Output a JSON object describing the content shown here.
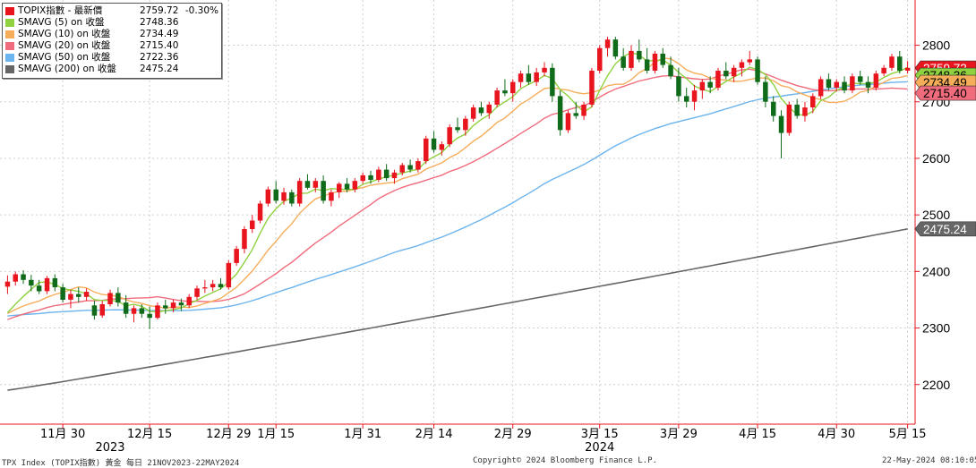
{
  "legend": [
    {
      "name": "TOPIX指數 - 最新價",
      "value": "2759.72",
      "change": "-0.30%",
      "color": "#e8141e"
    },
    {
      "name": "SMAVG (5)  on 收盤",
      "value": "2748.36",
      "change": "",
      "color": "#8fd13f"
    },
    {
      "name": "SMAVG (10)  on 收盤",
      "value": "2734.49",
      "change": "",
      "color": "#f5ad5a"
    },
    {
      "name": "SMAVG (20)  on 收盤",
      "value": "2715.40",
      "change": "",
      "color": "#f06b7c"
    },
    {
      "name": "SMAVG (50)  on 收盤",
      "value": "2722.36",
      "change": "",
      "color": "#6cb4ee"
    },
    {
      "name": "SMAVG (200)  on 收盤",
      "value": "2475.24",
      "change": "",
      "color": "#666666"
    }
  ],
  "footer": {
    "left": "TPX Index (TOPIX指數) 黃金  每日 21NOV2023-22MAY2024",
    "center": "Copyright© 2024 Bloomberg Finance L.P.",
    "right": "22-May-2024 08:10:05"
  },
  "chart_data": {
    "type": "candlestick",
    "ylim": [
      2130,
      2880
    ],
    "y_ticks": [
      2200,
      2300,
      2400,
      2500,
      2600,
      2700,
      2800
    ],
    "x_ticks": [
      {
        "label": "11月 30",
        "i": 7
      },
      {
        "label": "12月 15",
        "i": 18
      },
      {
        "label": "12月 29",
        "i": 28
      },
      {
        "label": "1月 15",
        "i": 34
      },
      {
        "label": "1月 31",
        "i": 45
      },
      {
        "label": "2月 14",
        "i": 54
      },
      {
        "label": "2月 29",
        "i": 64
      },
      {
        "label": "3月 15",
        "i": 75
      },
      {
        "label": "3月 29",
        "i": 85
      },
      {
        "label": "4月 15",
        "i": 95
      },
      {
        "label": "4月 30",
        "i": 105
      },
      {
        "label": "5月 15",
        "i": 114
      }
    ],
    "year_labels": [
      {
        "label": "2023",
        "i": 13
      },
      {
        "label": "2024",
        "i": 75
      }
    ],
    "value_tags": [
      {
        "value": "2759.72",
        "y": 2759.72,
        "color": "#e8141e",
        "text_color": "#ffffff"
      },
      {
        "value": "2748.36",
        "y": 2748.36,
        "color": "#8fd13f",
        "text_color": "#000000"
      },
      {
        "value": "2734.49",
        "y": 2734.49,
        "color": "#f5ad5a",
        "text_color": "#000000"
      },
      {
        "value": "2715.40",
        "y": 2715.4,
        "color": "#f06b7c",
        "text_color": "#000000"
      },
      {
        "value": "2475.24",
        "y": 2475.24,
        "color": "#666666",
        "text_color": "#ffffff"
      }
    ],
    "ohlc": [
      [
        2373,
        2393,
        2360,
        2382
      ],
      [
        2382,
        2400,
        2375,
        2395
      ],
      [
        2395,
        2402,
        2378,
        2385
      ],
      [
        2385,
        2394,
        2365,
        2375
      ],
      [
        2375,
        2385,
        2360,
        2365
      ],
      [
        2365,
        2392,
        2360,
        2388
      ],
      [
        2388,
        2395,
        2365,
        2372
      ],
      [
        2372,
        2378,
        2345,
        2350
      ],
      [
        2350,
        2368,
        2335,
        2360
      ],
      [
        2360,
        2372,
        2345,
        2355
      ],
      [
        2355,
        2370,
        2348,
        2364
      ],
      [
        2340,
        2348,
        2315,
        2322
      ],
      [
        2322,
        2348,
        2318,
        2342
      ],
      [
        2342,
        2368,
        2338,
        2362
      ],
      [
        2362,
        2372,
        2338,
        2345
      ],
      [
        2345,
        2358,
        2318,
        2325
      ],
      [
        2325,
        2340,
        2310,
        2335
      ],
      [
        2335,
        2342,
        2318,
        2325
      ],
      [
        2325,
        2338,
        2298,
        2318
      ],
      [
        2318,
        2345,
        2315,
        2340
      ],
      [
        2340,
        2350,
        2325,
        2335
      ],
      [
        2335,
        2350,
        2328,
        2345
      ],
      [
        2345,
        2352,
        2330,
        2340
      ],
      [
        2340,
        2360,
        2335,
        2355
      ],
      [
        2355,
        2375,
        2350,
        2370
      ],
      [
        2370,
        2385,
        2362,
        2372
      ],
      [
        2372,
        2385,
        2365,
        2378
      ],
      [
        2378,
        2388,
        2368,
        2372
      ],
      [
        2372,
        2420,
        2368,
        2415
      ],
      [
        2415,
        2445,
        2410,
        2440
      ],
      [
        2440,
        2480,
        2432,
        2475
      ],
      [
        2475,
        2500,
        2468,
        2490
      ],
      [
        2490,
        2525,
        2485,
        2520
      ],
      [
        2520,
        2550,
        2515,
        2545
      ],
      [
        2545,
        2560,
        2520,
        2525
      ],
      [
        2525,
        2548,
        2518,
        2540
      ],
      [
        2540,
        2545,
        2515,
        2520
      ],
      [
        2520,
        2565,
        2515,
        2560
      ],
      [
        2560,
        2572,
        2545,
        2548
      ],
      [
        2548,
        2565,
        2540,
        2560
      ],
      [
        2560,
        2570,
        2520,
        2525
      ],
      [
        2525,
        2545,
        2515,
        2540
      ],
      [
        2540,
        2558,
        2530,
        2555
      ],
      [
        2555,
        2565,
        2540,
        2545
      ],
      [
        2545,
        2565,
        2540,
        2560
      ],
      [
        2560,
        2575,
        2555,
        2570
      ],
      [
        2570,
        2578,
        2555,
        2562
      ],
      [
        2562,
        2585,
        2558,
        2580
      ],
      [
        2580,
        2590,
        2560,
        2565
      ],
      [
        2565,
        2580,
        2555,
        2575
      ],
      [
        2575,
        2592,
        2570,
        2588
      ],
      [
        2588,
        2598,
        2575,
        2580
      ],
      [
        2580,
        2600,
        2575,
        2595
      ],
      [
        2595,
        2640,
        2590,
        2635
      ],
      [
        2635,
        2648,
        2610,
        2615
      ],
      [
        2615,
        2630,
        2605,
        2625
      ],
      [
        2625,
        2660,
        2620,
        2655
      ],
      [
        2655,
        2672,
        2645,
        2650
      ],
      [
        2650,
        2675,
        2640,
        2670
      ],
      [
        2670,
        2695,
        2665,
        2690
      ],
      [
        2690,
        2700,
        2675,
        2680
      ],
      [
        2680,
        2700,
        2670,
        2695
      ],
      [
        2695,
        2725,
        2690,
        2720
      ],
      [
        2720,
        2740,
        2710,
        2715
      ],
      [
        2715,
        2740,
        2700,
        2735
      ],
      [
        2735,
        2755,
        2725,
        2750
      ],
      [
        2750,
        2765,
        2730,
        2735
      ],
      [
        2735,
        2760,
        2728,
        2752
      ],
      [
        2752,
        2770,
        2745,
        2760
      ],
      [
        2760,
        2768,
        2700,
        2710
      ],
      [
        2710,
        2720,
        2640,
        2650
      ],
      [
        2650,
        2685,
        2645,
        2680
      ],
      [
        2680,
        2700,
        2670,
        2675
      ],
      [
        2675,
        2700,
        2668,
        2695
      ],
      [
        2695,
        2760,
        2690,
        2755
      ],
      [
        2755,
        2800,
        2750,
        2795
      ],
      [
        2795,
        2815,
        2780,
        2810
      ],
      [
        2810,
        2815,
        2775,
        2780
      ],
      [
        2780,
        2795,
        2755,
        2760
      ],
      [
        2760,
        2800,
        2755,
        2790
      ],
      [
        2790,
        2810,
        2770,
        2775
      ],
      [
        2775,
        2795,
        2750,
        2755
      ],
      [
        2755,
        2790,
        2750,
        2785
      ],
      [
        2785,
        2795,
        2760,
        2765
      ],
      [
        2765,
        2780,
        2740,
        2745
      ],
      [
        2745,
        2760,
        2700,
        2710
      ],
      [
        2710,
        2725,
        2690,
        2700
      ],
      [
        2700,
        2730,
        2685,
        2720
      ],
      [
        2720,
        2740,
        2705,
        2735
      ],
      [
        2735,
        2745,
        2715,
        2725
      ],
      [
        2725,
        2760,
        2720,
        2755
      ],
      [
        2755,
        2770,
        2740,
        2745
      ],
      [
        2745,
        2765,
        2735,
        2760
      ],
      [
        2760,
        2775,
        2745,
        2770
      ],
      [
        2770,
        2790,
        2765,
        2775
      ],
      [
        2775,
        2780,
        2730,
        2735
      ],
      [
        2735,
        2745,
        2690,
        2700
      ],
      [
        2700,
        2710,
        2665,
        2675
      ],
      [
        2675,
        2685,
        2600,
        2645
      ],
      [
        2645,
        2700,
        2640,
        2695
      ],
      [
        2695,
        2705,
        2670,
        2675
      ],
      [
        2675,
        2700,
        2665,
        2690
      ],
      [
        2690,
        2715,
        2680,
        2710
      ],
      [
        2710,
        2745,
        2705,
        2740
      ],
      [
        2740,
        2750,
        2720,
        2725
      ],
      [
        2725,
        2740,
        2718,
        2735
      ],
      [
        2735,
        2745,
        2715,
        2720
      ],
      [
        2720,
        2750,
        2715,
        2745
      ],
      [
        2745,
        2755,
        2730,
        2735
      ],
      [
        2735,
        2745,
        2715,
        2725
      ],
      [
        2725,
        2755,
        2720,
        2750
      ],
      [
        2750,
        2765,
        2745,
        2760
      ],
      [
        2760,
        2785,
        2755,
        2780
      ],
      [
        2780,
        2790,
        2750,
        2755
      ],
      [
        2755,
        2772,
        2750,
        2760
      ]
    ],
    "sma200_start": 2190
  }
}
